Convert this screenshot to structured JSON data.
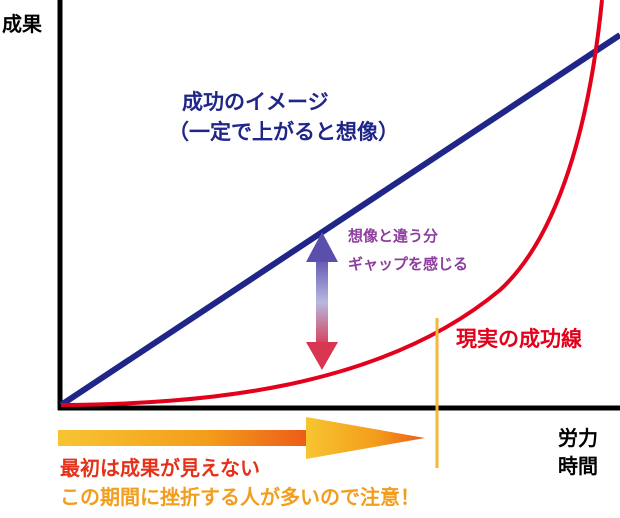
{
  "colors": {
    "ideal_line": "#1f2687",
    "real_curve": "#e3001b",
    "gap_text": "#8e3e9e",
    "message_red": "#e5301a",
    "message_orange": "#f29e1c",
    "axis": "#000000"
  },
  "axes": {
    "y_label": "成果",
    "x_label_line1": "労力",
    "x_label_line2": "時間"
  },
  "ideal": {
    "label_line1": "成功のイメージ",
    "label_line2": "（一定で上がると想像）"
  },
  "gap": {
    "label_line1": "想像と違う分",
    "label_line2": "ギャップを感じる",
    "icon": "double-arrow-icon"
  },
  "real": {
    "label": "現実の成功線"
  },
  "message": {
    "line1": "最初は成果が見えない",
    "line2": "この期間に挫折する人が多いので注意！",
    "icon": "arrow-right-icon"
  }
}
